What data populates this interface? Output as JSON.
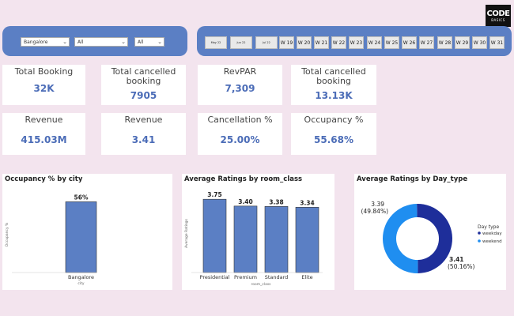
{
  "logo": {
    "main": "CODE",
    "sub": "BASICS"
  },
  "filters": {
    "city": "Bangalore",
    "filter2": "All",
    "filter3": "All"
  },
  "weeks": {
    "small": [
      "May 22",
      "Jun 22",
      "Jul 22"
    ],
    "labels": [
      "W 19",
      "W 20",
      "W 21",
      "W 22",
      "W 23",
      "W 24",
      "W 25",
      "W 26",
      "W 27",
      "W 28",
      "W 29",
      "W 30",
      "W 31"
    ]
  },
  "kpis": {
    "total_booking": {
      "label": "Total Booking",
      "value": "32K"
    },
    "total_cancelled": {
      "label": "Total cancelled booking",
      "value": "7905"
    },
    "revpar": {
      "label": "RevPAR",
      "value": "7,309"
    },
    "total_cancelled2": {
      "label": "Total cancelled booking",
      "value": "13.13K"
    },
    "revenue": {
      "label": "Revenue",
      "value": "415.03M"
    },
    "revenue2": {
      "label": "Revenue",
      "value": "3.41"
    },
    "cancellation_pct": {
      "label": "Cancellation %",
      "value": "25.00%"
    },
    "occupancy_pct": {
      "label": "Occupancy %",
      "value": "55.68%"
    }
  },
  "chart_data": [
    {
      "type": "bar",
      "title": "Occupancy % by city",
      "xlabel": "city",
      "ylabel": "Occupancy %",
      "categories": [
        "Bangalore"
      ],
      "values": [
        56
      ],
      "data_labels": [
        "56%"
      ],
      "ylim": [
        0,
        60
      ],
      "color": "#5b7fc4"
    },
    {
      "type": "bar",
      "title": "Average Ratings by room_class",
      "xlabel": "room_class",
      "ylabel": "Average Ratings",
      "categories": [
        "Presidential",
        "Premium",
        "Standard",
        "Elite"
      ],
      "values": [
        3.75,
        3.4,
        3.38,
        3.34
      ],
      "data_labels": [
        "3.75",
        "3.40",
        "3.38",
        "3.34"
      ],
      "ylim": [
        0,
        4
      ],
      "color": "#5b7fc4"
    },
    {
      "type": "pie",
      "title": "Average Ratings by Day_type",
      "legend_title": "Day type",
      "legend_position": "right",
      "slices": [
        {
          "name": "weekday",
          "value": 3.41,
          "pct": "(50.16%)",
          "color": "#1e2e9a"
        },
        {
          "name": "weekend",
          "value": 3.39,
          "pct": "(49.84%)",
          "color": "#1f8ef0"
        }
      ]
    }
  ]
}
